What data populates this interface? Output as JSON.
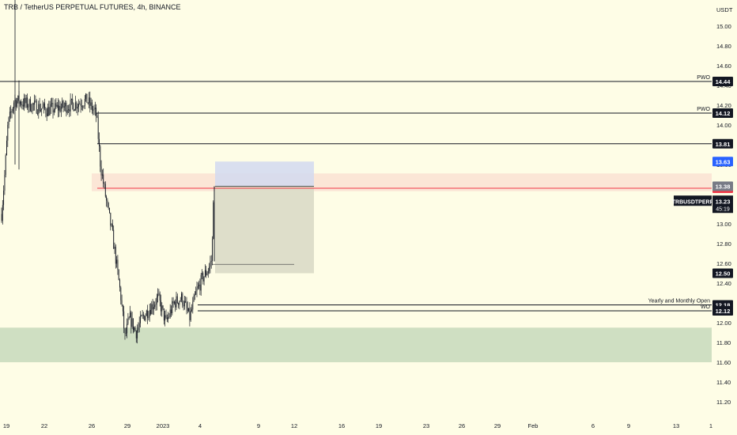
{
  "header": {
    "title": "TRB / TetherUS PERPETUAL FUTURES, 4h, BINANCE"
  },
  "colors": {
    "background": "#fefde6",
    "candle": "#131722",
    "red_line": "#f23645",
    "demand_zone": "#cfdfc2",
    "supply_zone": "#fbe6d6",
    "label_dark": "#131722",
    "label_blue": "#2962ff",
    "label_red": "#f23645",
    "label_grey": "#787b86",
    "position_stop": "#d2d9f0",
    "position_target": "#dcdcc8"
  },
  "chart_data": {
    "type": "candlestick",
    "title": "TRB / TetherUS PERPETUAL FUTURES, 4h, BINANCE",
    "currency": "USDT",
    "y_range": [
      11.1,
      15.22
    ],
    "y_ticks": [
      "15.00",
      "14.80",
      "14.60",
      "14.40",
      "14.20",
      "14.00",
      "13.80",
      "13.60",
      "13.40",
      "13.20",
      "13.00",
      "12.80",
      "12.60",
      "12.40",
      "12.20",
      "12.00",
      "11.80",
      "11.60",
      "11.40",
      "11.20"
    ],
    "x_ticks": [
      "19",
      "22",
      "26",
      "29",
      "2023",
      "4",
      "9",
      "12",
      "16",
      "19",
      "23",
      "26",
      "29",
      "Feb",
      "6",
      "9",
      "13",
      "1"
    ],
    "horizontal_levels": [
      {
        "price": 14.44,
        "label": "14.44",
        "note": "PWO",
        "style": "dark"
      },
      {
        "price": 14.12,
        "label": "14.12",
        "note": "PWO",
        "style": "dark"
      },
      {
        "price": 13.81,
        "label": "13.81",
        "note": "",
        "style": "dark"
      },
      {
        "price": 13.36,
        "label": "13.36",
        "note": "",
        "style": "red"
      },
      {
        "price": 12.18,
        "label": "12.18",
        "note": "Yearly and Monthly Open",
        "style": "dark"
      },
      {
        "price": 12.12,
        "label": "12.12",
        "note": "WO",
        "style": "dark"
      }
    ],
    "price_labels": [
      {
        "price": 13.63,
        "label": "13.63",
        "style": "blue"
      },
      {
        "price": 13.38,
        "label": "13.38",
        "style": "grey"
      },
      {
        "price": 12.5,
        "label": "12.50",
        "style": "dark"
      }
    ],
    "current_price": {
      "symbol": "TRBUSDTPERP",
      "price": "13.23",
      "countdown": "45:19"
    },
    "zones": [
      {
        "name": "supply",
        "from": 13.33,
        "to": 13.51
      },
      {
        "name": "demand",
        "from": 11.6,
        "to": 11.95
      }
    ],
    "position": {
      "target_top": 13.63,
      "entry": 13.38,
      "stop_bottom": 12.5,
      "marker": 12.59
    }
  }
}
